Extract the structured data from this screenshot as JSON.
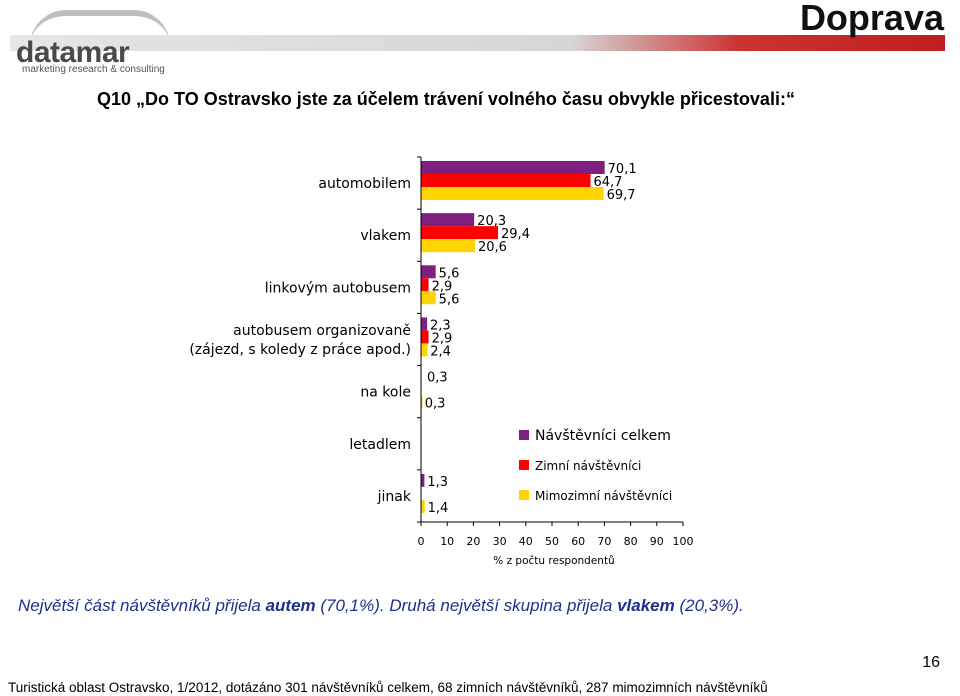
{
  "header": {
    "logo_text": "datamar",
    "logo_tagline": "marketing research & consulting",
    "page_heading": "Doprava"
  },
  "question": "Q10 „Do TO Ostravsko jste za účelem trávení volného času obvykle přicestovali:“",
  "summary": {
    "part1": "Největší část návštěvníků přijela ",
    "bold1": "autem",
    "part2": " (70,1%). Druhá největší skupina přijela ",
    "bold2": "vlakem",
    "part3": " (20,3%)."
  },
  "page_number": "16",
  "footer_note": "Turistická oblast Ostravsko, 1/2012, dotázáno 301 návštěvníků celkem, 68 zimních návštěvníků, 287 mimozimních návštěvníků",
  "chart_data": {
    "type": "bar",
    "orientation": "horizontal",
    "categories": [
      [
        "automobilem"
      ],
      [
        "vlakem"
      ],
      [
        "linkovým autobusem"
      ],
      [
        "autobusem organizovaně",
        "(zájezd, s koledy z práce apod.)"
      ],
      [
        "na kole"
      ],
      [
        "letadlem"
      ],
      [
        "jinak"
      ]
    ],
    "series": [
      {
        "name": "Návštěvníci celkem",
        "color": "#7f1f7f",
        "values": [
          70.1,
          20.3,
          5.6,
          2.3,
          null,
          null,
          1.3
        ],
        "labels": [
          "70,1",
          "20,3",
          "5,6",
          "2,3",
          "",
          "",
          "1,3"
        ]
      },
      {
        "name": "Zimní návštěvníci",
        "color": "#ff0000",
        "values": [
          64.7,
          29.4,
          2.9,
          2.9,
          null,
          null,
          null
        ],
        "labels": [
          "64,7",
          "29,4",
          "2,9",
          "2,9",
          "",
          "",
          ""
        ]
      },
      {
        "name": "Mimozimní návštěvníci",
        "color": "#ffd400",
        "values": [
          69.7,
          20.6,
          5.6,
          2.4,
          0.3,
          null,
          1.4
        ],
        "labels": [
          "69,7",
          "20,6",
          "5,6",
          "2,4",
          "0,3",
          "",
          "1,4"
        ]
      }
    ],
    "extra_labels": [
      {
        "category_index": 4,
        "text": "0,3"
      }
    ],
    "x_ticks": [
      "0",
      "10",
      "20",
      "30",
      "40",
      "50",
      "60",
      "70",
      "80",
      "90",
      "100"
    ],
    "xlabel": "% z počtu respondentů",
    "xlim": [
      0,
      100
    ],
    "legend_position": "right",
    "grid": false
  }
}
